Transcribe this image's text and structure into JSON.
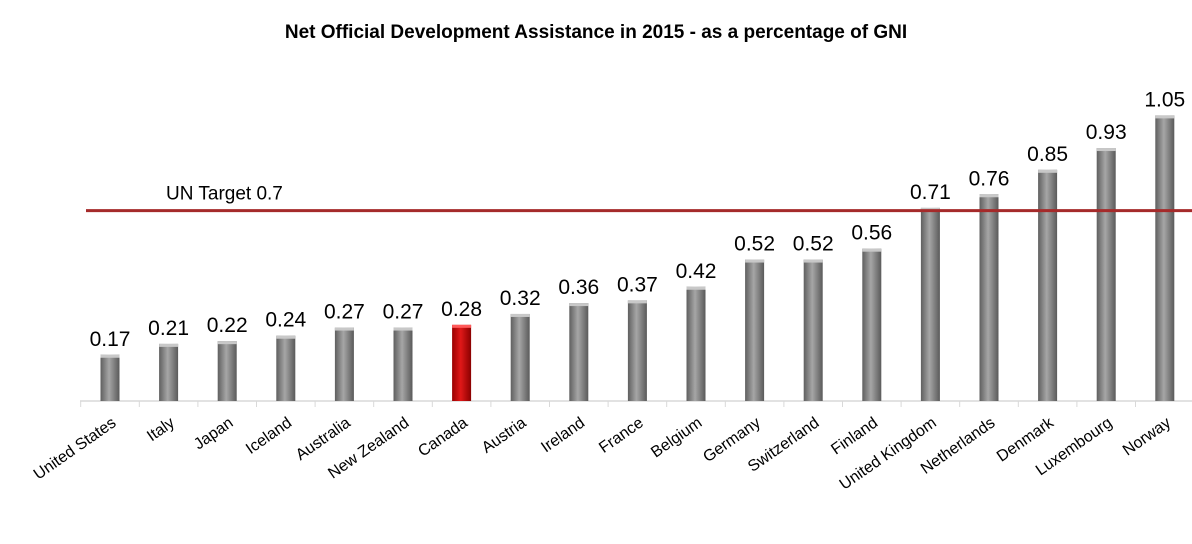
{
  "chart_data": {
    "type": "bar",
    "title": "Net Official Development Assistance in 2015 - as a percentage of GNI",
    "categories": [
      "United States",
      "Italy",
      "Japan",
      "Iceland",
      "Australia",
      "New Zealand",
      "Canada",
      "Austria",
      "Ireland",
      "France",
      "Belgium",
      "Germany",
      "Switzerland",
      "Finland",
      "United Kingdom",
      "Netherlands",
      "Denmark",
      "Luxembourg",
      "Norway"
    ],
    "values": [
      0.17,
      0.21,
      0.22,
      0.24,
      0.27,
      0.27,
      0.28,
      0.32,
      0.36,
      0.37,
      0.42,
      0.52,
      0.52,
      0.56,
      0.71,
      0.76,
      0.85,
      0.93,
      1.05
    ],
    "data_labels": [
      "0.17",
      "0.21",
      "0.22",
      "0.24",
      "0.27",
      "0.27",
      "0.28",
      "0.32",
      "0.36",
      "0.37",
      "0.42",
      "0.52",
      "0.52",
      "0.56",
      "0.71",
      "0.76",
      "0.85",
      "0.93",
      "1.05"
    ],
    "highlight_category": "Canada",
    "reference_line": {
      "value": 0.7,
      "label": "UN Target 0.7",
      "color": "#a52a2a"
    },
    "colors": {
      "bar": "#7f7f7f",
      "highlight": "#c00000"
    },
    "xlabel": "",
    "ylabel": "",
    "ylim": [
      0,
      1.1
    ],
    "grid": false,
    "legend": "none"
  }
}
